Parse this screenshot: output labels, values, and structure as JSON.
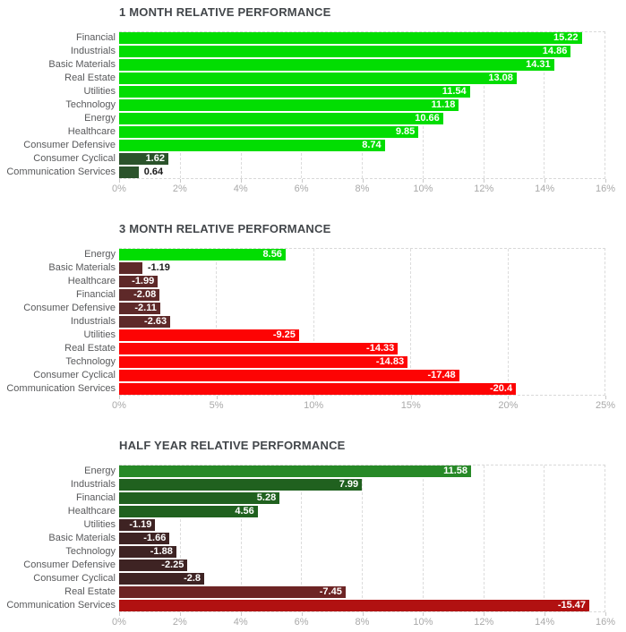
{
  "colors": {
    "bright_green": "#02dd02",
    "dark_green_small": "#2b532b",
    "maroon_small": "#5e2929",
    "bright_red": "#fd0404",
    "medium_green": "#278927",
    "dark_green": "#20611f",
    "very_dark_maroon": "#3e2323",
    "medium_maroon": "#6d2424",
    "dark_red": "#b11111",
    "title_text": "#43474b",
    "category_text": "#58595b",
    "tick_text": "#a9a9a9",
    "gridline": "#dcdcdc"
  },
  "chart_data": [
    {
      "type": "bar",
      "orientation": "horizontal",
      "title": "1 MONTH RELATIVE PERFORMANCE",
      "xlim": [
        0,
        16
      ],
      "tick_values": [
        0,
        2,
        4,
        6,
        8,
        10,
        12,
        14,
        16
      ],
      "tick_labels": [
        "0%",
        "2%",
        "4%",
        "6%",
        "8%",
        "10%",
        "12%",
        "14%",
        "16%"
      ],
      "grid": "dashed",
      "bars": [
        {
          "label": "Financial",
          "value": 15.22,
          "display": "15.22",
          "color": "#02dd02"
        },
        {
          "label": "Industrials",
          "value": 14.86,
          "display": "14.86",
          "color": "#02dd02"
        },
        {
          "label": "Basic Materials",
          "value": 14.31,
          "display": "14.31",
          "color": "#02dd02"
        },
        {
          "label": "Real Estate",
          "value": 13.08,
          "display": "13.08",
          "color": "#02dd02"
        },
        {
          "label": "Utilities",
          "value": 11.54,
          "display": "11.54",
          "color": "#02dd02"
        },
        {
          "label": "Technology",
          "value": 11.18,
          "display": "11.18",
          "color": "#02dd02"
        },
        {
          "label": "Energy",
          "value": 10.66,
          "display": "10.66",
          "color": "#02dd02"
        },
        {
          "label": "Healthcare",
          "value": 9.85,
          "display": "9.85",
          "color": "#02dd02"
        },
        {
          "label": "Consumer Defensive",
          "value": 8.74,
          "display": "8.74",
          "color": "#02dd02"
        },
        {
          "label": "Consumer Cyclical",
          "value": 1.62,
          "display": "1.62",
          "color": "#2b532b"
        },
        {
          "label": "Communication Services",
          "value": 0.64,
          "display": "0.64",
          "color": "#2b532b"
        }
      ]
    },
    {
      "type": "bar",
      "orientation": "horizontal",
      "title": "3 MONTH RELATIVE PERFORMANCE",
      "xlim": [
        0,
        25
      ],
      "tick_values": [
        0,
        5,
        10,
        15,
        20,
        25
      ],
      "tick_labels": [
        "0%",
        "5%",
        "10%",
        "15%",
        "20%",
        "25%"
      ],
      "grid": "dashed",
      "bars": [
        {
          "label": "Energy",
          "value": 8.56,
          "display": "8.56",
          "color": "#02dd02"
        },
        {
          "label": "Basic Materials",
          "value": -1.19,
          "display": "-1.19",
          "color": "#5e2929"
        },
        {
          "label": "Healthcare",
          "value": -1.99,
          "display": "-1.99",
          "color": "#5e2929"
        },
        {
          "label": "Financial",
          "value": -2.08,
          "display": "-2.08",
          "color": "#5e2929"
        },
        {
          "label": "Consumer Defensive",
          "value": -2.11,
          "display": "-2.11",
          "color": "#5e2929"
        },
        {
          "label": "Industrials",
          "value": -2.63,
          "display": "-2.63",
          "color": "#5e2929"
        },
        {
          "label": "Utilities",
          "value": -9.25,
          "display": "-9.25",
          "color": "#fd0404"
        },
        {
          "label": "Real Estate",
          "value": -14.33,
          "display": "-14.33",
          "color": "#fd0404"
        },
        {
          "label": "Technology",
          "value": -14.83,
          "display": "-14.83",
          "color": "#fd0404"
        },
        {
          "label": "Consumer Cyclical",
          "value": -17.48,
          "display": "-17.48",
          "color": "#fd0404"
        },
        {
          "label": "Communication Services",
          "value": -20.4,
          "display": "-20.4",
          "color": "#fd0404"
        }
      ]
    },
    {
      "type": "bar",
      "orientation": "horizontal",
      "title": "HALF YEAR RELATIVE PERFORMANCE",
      "xlim": [
        0,
        16
      ],
      "tick_values": [
        0,
        2,
        4,
        6,
        8,
        10,
        12,
        14,
        16
      ],
      "tick_labels": [
        "0%",
        "2%",
        "4%",
        "6%",
        "8%",
        "10%",
        "12%",
        "14%",
        "16%"
      ],
      "grid": "dashed",
      "bars": [
        {
          "label": "Energy",
          "value": 11.58,
          "display": "11.58",
          "color": "#278927"
        },
        {
          "label": "Industrials",
          "value": 7.99,
          "display": "7.99",
          "color": "#20611f"
        },
        {
          "label": "Financial",
          "value": 5.28,
          "display": "5.28",
          "color": "#20611f"
        },
        {
          "label": "Healthcare",
          "value": 4.56,
          "display": "4.56",
          "color": "#20611f"
        },
        {
          "label": "Utilities",
          "value": -1.19,
          "display": "-1.19",
          "color": "#3e2323"
        },
        {
          "label": "Basic Materials",
          "value": -1.66,
          "display": "-1.66",
          "color": "#3e2323"
        },
        {
          "label": "Technology",
          "value": -1.88,
          "display": "-1.88",
          "color": "#3e2323"
        },
        {
          "label": "Consumer Defensive",
          "value": -2.25,
          "display": "-2.25",
          "color": "#3e2323"
        },
        {
          "label": "Consumer Cyclical",
          "value": -2.8,
          "display": "-2.8",
          "color": "#3e2323"
        },
        {
          "label": "Real Estate",
          "value": -7.45,
          "display": "-7.45",
          "color": "#6d2424"
        },
        {
          "label": "Communication Services",
          "value": -15.47,
          "display": "-15.47",
          "color": "#b11111"
        }
      ]
    }
  ]
}
